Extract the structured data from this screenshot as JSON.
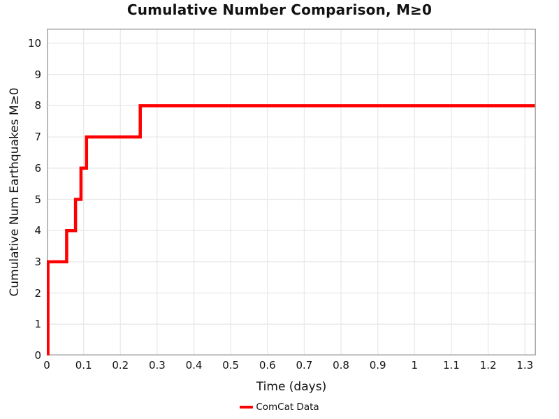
{
  "chart_data": {
    "type": "line",
    "subtype": "step-post",
    "title": "Cumulative Number Comparison, M≥0",
    "xlabel": "Time (days)",
    "ylabel": "Cumulative Num Earthquakes M≥0",
    "xlim": [
      0,
      1.33
    ],
    "ylim": [
      0,
      10.47
    ],
    "grid": true,
    "x_ticks": [
      0,
      0.1,
      0.2,
      0.3,
      0.4,
      0.5,
      0.6,
      0.7,
      0.8,
      0.9,
      1,
      1.1,
      1.2,
      1.3
    ],
    "x_tick_labels": [
      "0",
      "0.1",
      "0.2",
      "0.3",
      "0.4",
      "0.5",
      "0.6",
      "0.7",
      "0.8",
      "0.9",
      "1",
      "1.1",
      "1.2",
      "1.3"
    ],
    "y_ticks": [
      0,
      1,
      2,
      3,
      4,
      5,
      6,
      7,
      8,
      9,
      10
    ],
    "y_tick_labels": [
      "0",
      "1",
      "2",
      "3",
      "4",
      "5",
      "6",
      "7",
      "8",
      "9",
      "10"
    ],
    "series": [
      {
        "name": "ComCat Data",
        "color": "#ff0000",
        "line_width": 4.5,
        "points": [
          [
            0,
            0
          ],
          [
            0.003,
            3
          ],
          [
            0.054,
            4
          ],
          [
            0.078,
            5
          ],
          [
            0.093,
            6
          ],
          [
            0.108,
            7
          ],
          [
            0.254,
            8
          ],
          [
            1.327,
            8
          ]
        ]
      }
    ],
    "legend": {
      "position": "bottom-center",
      "entries": [
        {
          "label": "ComCat Data",
          "color": "#ff0000"
        }
      ]
    },
    "colors": {
      "background": "#ffffff",
      "grid": "#e9e9e9",
      "border": "#aaaaaa",
      "text": "#111111"
    }
  }
}
